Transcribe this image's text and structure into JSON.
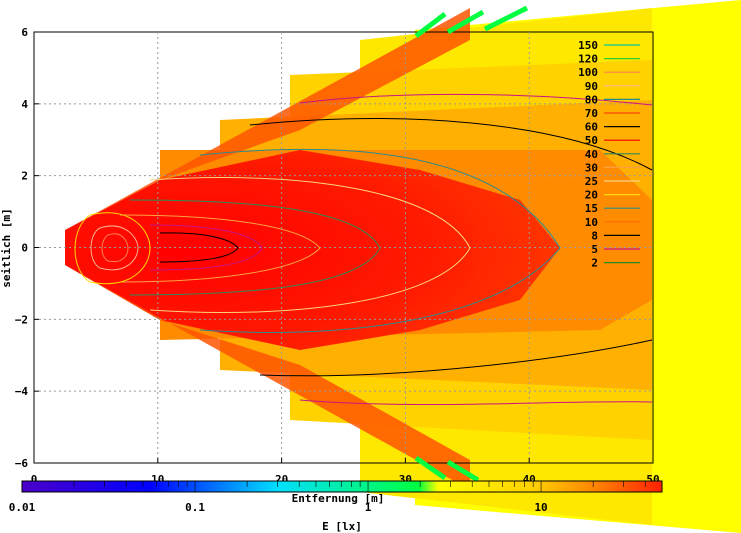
{
  "chart_data": {
    "type": "heatmap",
    "title": "",
    "xlabel": "Entfernung [m]",
    "ylabel": "seitlich [m]",
    "colorbar_label": "E [lx]",
    "xlim": [
      0,
      50
    ],
    "ylim": [
      -6,
      6
    ],
    "x_ticks": [
      0,
      10,
      20,
      30,
      40,
      50
    ],
    "y_ticks": [
      -6,
      -4,
      -2,
      0,
      2,
      4,
      6
    ],
    "grid": true,
    "colorscale": "log",
    "colorbar_range": [
      0.01,
      50
    ],
    "colorbar_ticks": [
      {
        "value": 0.01,
        "label": "0.01"
      },
      {
        "value": 0.1,
        "label": "0.1"
      },
      {
        "value": 1,
        "label": "1"
      },
      {
        "value": 10,
        "label": "10"
      }
    ],
    "colors": {
      "low": "#4b00c8",
      "mid_low": "#00e0ff",
      "mid": "#00ff40",
      "high": "#ffff00",
      "max": "#ff2000"
    },
    "legend_position": "top-right",
    "contour_levels": [
      {
        "label": "150",
        "value": 150,
        "color": "#00c896"
      },
      {
        "label": "120",
        "value": 120,
        "color": "#32cd32"
      },
      {
        "label": "100",
        "value": 100,
        "color": "#ff7f50"
      },
      {
        "label": "90",
        "value": 90,
        "color": "#ffb090"
      },
      {
        "label": "80",
        "value": 80,
        "color": "#228b8b"
      },
      {
        "label": "70",
        "value": 70,
        "color": "#ff4500"
      },
      {
        "label": "60",
        "value": 60,
        "color": "#000000"
      },
      {
        "label": "50",
        "value": 50,
        "color": "#ff0000"
      },
      {
        "label": "40",
        "value": 40,
        "color": "#2e8b57"
      },
      {
        "label": "30",
        "value": 30,
        "color": "#ffa040"
      },
      {
        "label": "25",
        "value": 25,
        "color": "#ffd27f"
      },
      {
        "label": "20",
        "value": 20,
        "color": "#ffd700"
      },
      {
        "label": "15",
        "value": 15,
        "color": "#2e8b8b"
      },
      {
        "label": "10",
        "value": 10,
        "color": "#ff6a00"
      },
      {
        "label": "8",
        "value": 8,
        "color": "#000000"
      },
      {
        "label": "5",
        "value": 5,
        "color": "#c71585"
      },
      {
        "label": "2",
        "value": 2,
        "color": "#228b22"
      }
    ]
  }
}
